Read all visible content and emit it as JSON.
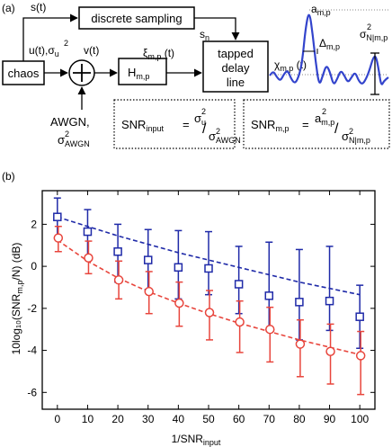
{
  "panel_a": {
    "label": "(a)",
    "chaos": "chaos",
    "discrete_sampling": "discrete sampling",
    "tapped_delay_line": [
      "tapped",
      "delay",
      "line"
    ],
    "s_t": "s(t)",
    "s_n": "s",
    "s_n_sub": "n",
    "u_t": "u(t),σ",
    "u_sub": "u",
    "u_sup": "2",
    "v_t": "v(t)",
    "h_main": "H",
    "h_sub": "m,p",
    "xi_main": "ξ",
    "xi_sub": "m,p",
    "xi_tail": " (t)",
    "chi_main": "χ",
    "chi_sub": "m,p",
    "chi_tail": " (t)",
    "a_main": "a",
    "a_sub": "m,p",
    "delta_main": "Δ",
    "delta_sub": "m,p",
    "sigma_main": "σ",
    "sigma_sup": "2",
    "sigma_sub": "N|m,p",
    "awgn_1": "AWGN,",
    "awgn_sigma": "σ",
    "awgn_sup": "2",
    "awgn_sub": "AWGN",
    "snr_input_lhs": "SNR",
    "snr_input_lhs_sub": "input",
    "snr_mp_lhs": "SNR",
    "snr_mp_lhs_sub": "m,p",
    "eq": "=",
    "snr_input_num": "σ",
    "snr_input_num_sup": "2",
    "snr_input_num_sub": "u",
    "snr_input_den": "σ",
    "snr_input_den_sup": "2",
    "snr_input_den_sub": "AWGN",
    "snr_mp_num": "a",
    "snr_mp_num_sup": "2",
    "snr_mp_num_sub": "m,p",
    "snr_mp_den": "σ",
    "snr_mp_den_sup": "2",
    "snr_mp_den_sub": "N|m,p",
    "slash": "/",
    "colors": {
      "signal": "#3344cc",
      "dotted": "#888888"
    }
  },
  "panel_b": {
    "label": "(b)",
    "chart_data": {
      "type": "scatter",
      "xlabel_main": "1/SNR",
      "xlabel_sub": "input",
      "ylabel": "10log₁₀(SNR",
      "ylabel_sub": "m,p",
      "ylabel_tail": "/N)  (dB)",
      "xlim": [
        -5,
        105
      ],
      "ylim": [
        -6.8,
        3.6
      ],
      "xticks": [
        0,
        10,
        20,
        30,
        40,
        50,
        60,
        70,
        80,
        90,
        100
      ],
      "yticks": [
        2,
        0,
        -2,
        -4,
        -6
      ],
      "series": [
        {
          "marker": "square",
          "color": "#1f2aa8",
          "x": [
            0,
            10,
            20,
            30,
            40,
            50,
            60,
            70,
            80,
            90,
            100
          ],
          "y": [
            2.35,
            1.65,
            0.7,
            0.3,
            -0.05,
            -0.1,
            -0.85,
            -1.4,
            -1.7,
            -1.65,
            -2.4
          ],
          "err_lo": [
            1.0,
            1.3,
            1.45,
            1.4,
            1.5,
            1.25,
            1.4,
            1.6,
            1.8,
            1.4,
            1.5
          ],
          "err_hi": [
            0.9,
            1.05,
            1.3,
            1.45,
            1.75,
            1.75,
            1.8,
            2.55,
            2.5,
            2.6,
            1.5
          ],
          "fit": [
            2.35,
            1.9,
            1.45,
            1.05,
            0.65,
            0.3,
            -0.05,
            -0.4,
            -0.75,
            -1.05,
            -1.35
          ]
        },
        {
          "marker": "circle",
          "color": "#e8453c",
          "x": [
            0,
            10,
            20,
            30,
            40,
            50,
            60,
            70,
            80,
            90,
            100
          ],
          "y": [
            1.35,
            0.4,
            -0.65,
            -1.2,
            -1.75,
            -2.2,
            -2.65,
            -3.0,
            -3.7,
            -4.05,
            -4.25
          ],
          "err_lo": [
            0.65,
            0.75,
            0.9,
            1.05,
            1.1,
            1.3,
            1.45,
            1.55,
            1.55,
            1.55,
            1.85
          ],
          "err_hi": [
            0.55,
            0.8,
            0.9,
            0.95,
            1.0,
            1.05,
            1.0,
            1.05,
            1.15,
            1.3,
            1.15
          ],
          "fit": [
            1.25,
            0.25,
            -0.55,
            -1.2,
            -1.75,
            -2.25,
            -2.7,
            -3.1,
            -3.5,
            -3.85,
            -4.2
          ]
        }
      ]
    }
  }
}
